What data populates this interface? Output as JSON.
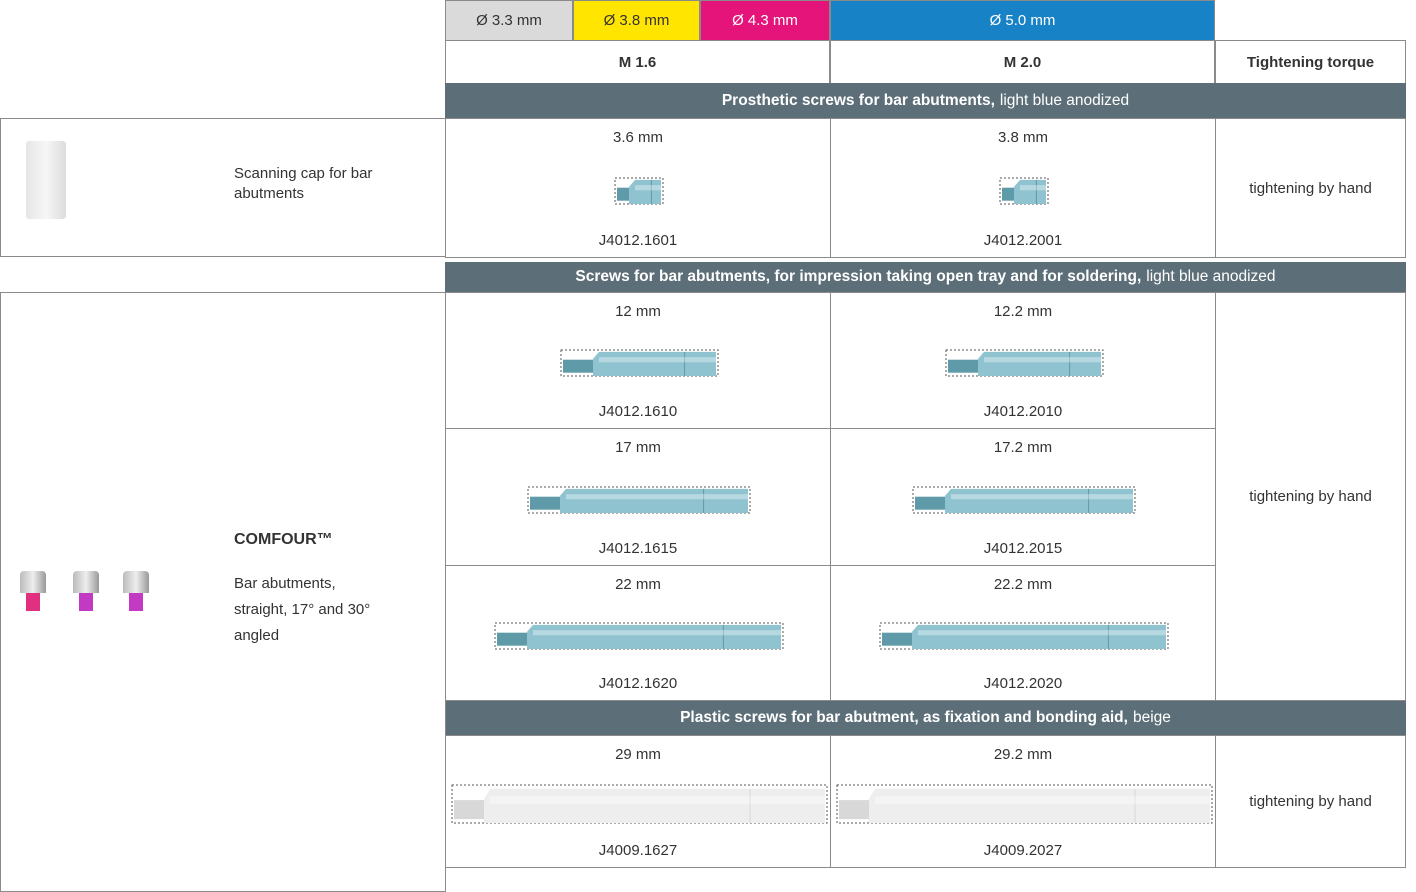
{
  "header": {
    "diameters": [
      "Ø 3.3 mm",
      "Ø 3.8 mm",
      "Ø 4.3 mm",
      "Ø 5.0 mm"
    ],
    "threads": [
      "M 1.6",
      "M 2.0"
    ],
    "torque_heading": "Tightening torque"
  },
  "products": [
    {
      "name": "Scanning cap for bar abutments"
    },
    {
      "name": "COMFOUR™",
      "description": "Bar abutments, straight, 17° and 30° angled"
    }
  ],
  "sections": [
    {
      "title": "Prosthetic screws for bar abutments,",
      "finish": "light blue anodized",
      "torque": "tightening by hand",
      "rows": [
        [
          {
            "length": "3.6 mm",
            "code": "J4012.1601"
          },
          {
            "length": "3.8 mm",
            "code": "J4012.2001"
          }
        ]
      ]
    },
    {
      "title": "Screws for bar abutments, for impression taking open tray and for soldering,",
      "finish": "light blue anodized",
      "torque": "tightening by hand",
      "rows": [
        [
          {
            "length": "12 mm",
            "code": "J4012.1610"
          },
          {
            "length": "12.2 mm",
            "code": "J4012.2010"
          }
        ],
        [
          {
            "length": "17 mm",
            "code": "J4012.1615"
          },
          {
            "length": "17.2 mm",
            "code": "J4012.2015"
          }
        ],
        [
          {
            "length": "22 mm",
            "code": "J4012.1620"
          },
          {
            "length": "22.2 mm",
            "code": "J4012.2020"
          }
        ]
      ]
    },
    {
      "title": "Plastic screws for bar abutment, as fixation and bonding aid,",
      "finish": "beige",
      "torque": "tightening by hand",
      "rows": [
        [
          {
            "length": "29 mm",
            "code": "J4009.1627"
          },
          {
            "length": "29.2 mm",
            "code": "J4009.2027"
          }
        ]
      ]
    }
  ]
}
